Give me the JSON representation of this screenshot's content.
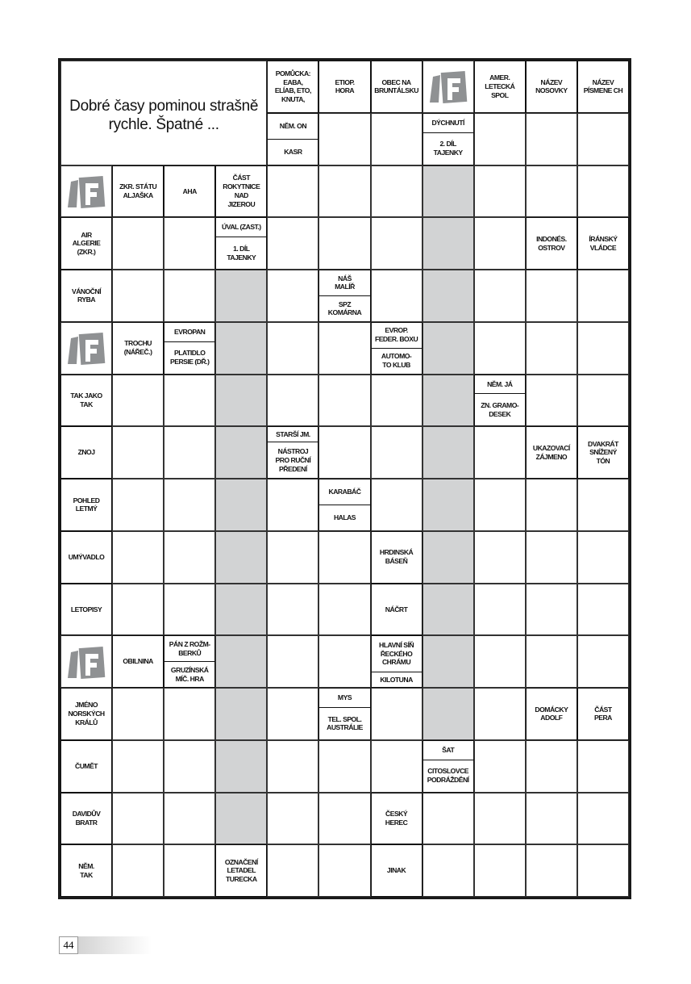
{
  "puzzle": {
    "title": "Dobré časy pominou strašně\nrychle. Špatné ...",
    "colors": {
      "shaded": "#d2d3d4",
      "logo": "#8f9193"
    },
    "logo_icon": "F-logo",
    "rows": [
      [
        "T",
        "T",
        "T",
        "T",
        [
          "POMŮCKA:\nEABA,\nELÍAB, ETO,\nKNUTA,"
        ],
        [
          "ETIOP.\nHORA"
        ],
        [
          "OBEC NA\nBRUNTÁLSKU"
        ],
        "logo",
        [
          "AMER.\nLETECKÁ\nSPOL"
        ],
        [
          "NÁZEV\nNOSOVKY"
        ],
        [
          "NÁZEV\nPÍSMENE CH"
        ]
      ],
      [
        "T",
        "T",
        "T",
        "T",
        [
          "NĚM. ON",
          "KASR"
        ],
        null,
        null,
        [
          "DÝCHNUTÍ",
          "2. DÍL\nTAJENKY"
        ],
        null,
        null,
        null
      ],
      [
        "logo",
        [
          "ZKR. STÁTU\nALJAŠKA"
        ],
        [
          "AHA"
        ],
        [
          "ČÁST\nROKYTNICE\nNAD\nJIZEROU"
        ],
        null,
        null,
        null,
        "gray",
        null,
        null,
        null
      ],
      [
        [
          "AIR\nALGERIE\n(ZKR.)"
        ],
        null,
        null,
        [
          "ÚVAL (ZAST.)",
          "1. DÍL\nTAJENKY"
        ],
        null,
        null,
        null,
        "gray",
        null,
        [
          "INDONÉS.\nOSTROV"
        ],
        [
          "ÍRÁNSKÝ\nVLÁDCE"
        ]
      ],
      [
        [
          "VÁNOČNÍ\nRYBA"
        ],
        null,
        null,
        "gray",
        null,
        [
          "NÁŠ\nMALÍŘ",
          "SPZ\nKOMÁRNA"
        ],
        null,
        "gray",
        null,
        null,
        null
      ],
      [
        "logo",
        [
          "TROCHU\n(NÁŘEČ.)"
        ],
        [
          "EVROPAN",
          "PLATIDLO\nPERSIE (DŘ.)"
        ],
        "gray",
        null,
        null,
        [
          "EVROP.\nFEDER. BOXU",
          "AUTOMO-\nTO KLUB"
        ],
        "gray",
        null,
        null,
        null
      ],
      [
        [
          "TAK JAKO\nTAK"
        ],
        null,
        null,
        "gray",
        null,
        null,
        null,
        "gray",
        [
          "NĚM. JÁ",
          "ZN. GRAMO-\nDESEK"
        ],
        null,
        null
      ],
      [
        [
          "ZNOJ"
        ],
        null,
        null,
        "gray",
        [
          "STARŠÍ JM.",
          "NÁSTROJ\nPRO RUČNÍ\nPŘEDENÍ"
        ],
        null,
        null,
        "gray",
        null,
        [
          "UKAZOVACÍ\nZÁJMENO"
        ],
        [
          "DVAKRÁT\nSNÍŽENÝ\nTÓN"
        ]
      ],
      [
        [
          "POHLED\nLETMÝ"
        ],
        null,
        null,
        "gray",
        null,
        [
          "KARABÁČ",
          "HALAS"
        ],
        null,
        "gray",
        null,
        null,
        null
      ],
      [
        [
          "UMÝVADLO"
        ],
        null,
        null,
        "gray",
        null,
        null,
        [
          "HRDINSKÁ\nBÁSEŇ"
        ],
        "gray",
        null,
        null,
        null
      ],
      [
        [
          "LETOPISY"
        ],
        null,
        null,
        "gray",
        null,
        null,
        [
          "NÁČRT"
        ],
        "gray",
        null,
        null,
        null
      ],
      [
        "logo",
        [
          "OBILNINA"
        ],
        [
          "PÁN Z ROŽM-\nBERKŮ",
          "GRUZÍNSKÁ\nMÍČ. HRA"
        ],
        "gray",
        null,
        null,
        [
          "HLAVNÍ SÍŇ\nŘECKÉHO\nCHRÁMU",
          "KILOTUNA"
        ],
        "gray",
        null,
        null,
        null
      ],
      [
        [
          "JMÉNO\nNORSKÝCH\nKRÁLŮ"
        ],
        null,
        null,
        "gray",
        null,
        [
          "MYS",
          "TEL. SPOL.\nAUSTRÁLIE"
        ],
        null,
        "gray",
        null,
        [
          "DOMÁCKY\nADOLF"
        ],
        [
          "ČÁST\nPERA"
        ]
      ],
      [
        [
          "ČUMĚT"
        ],
        null,
        null,
        "gray",
        null,
        null,
        null,
        [
          "ŠAT",
          "CITOSLOVCE\nPODRÁŽDĚNÍ"
        ],
        null,
        null,
        null
      ],
      [
        [
          "DAVIDŮV\nBRATR"
        ],
        null,
        null,
        "gray",
        null,
        null,
        [
          "ČESKÝ\nHEREC"
        ],
        null,
        null,
        null,
        null
      ],
      [
        [
          "NĚM.\nTAK"
        ],
        null,
        null,
        [
          "OZNAČENÍ\nLETADEL\nTURECKA"
        ],
        null,
        null,
        [
          "JINAK"
        ],
        null,
        null,
        null,
        null
      ]
    ]
  },
  "page_number": "44"
}
